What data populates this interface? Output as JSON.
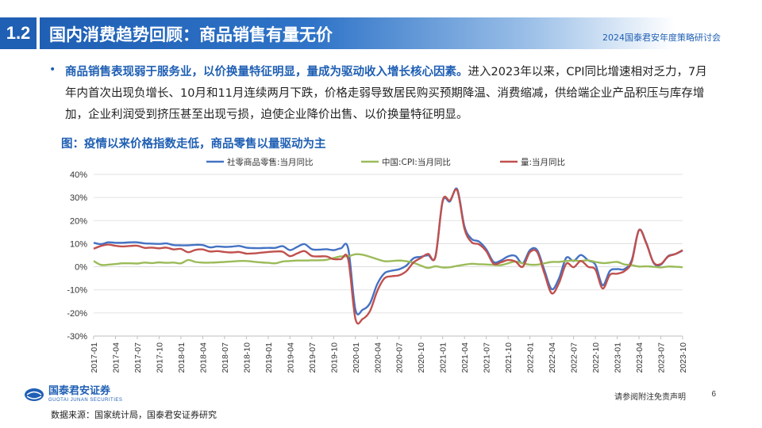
{
  "header": {
    "section_number": "1.2",
    "title": "国内消费趋势回顾：商品销售有量无价",
    "conference": "2024国泰君安年度策略研讨会"
  },
  "body": {
    "bullet": "•",
    "highlight": "商品销售表现弱于服务业，以价换量特征明显，量成为驱动收入增长核心因素。",
    "text": "进入2023年以来，CPI同比增速相对乏力，7月年内首次出现负增长、10月和11月连续两月下跌，价格走弱导致居民购买预期降温、消费缩减，供给端企业产品积压与库存增加，企业利润受到挤压甚至出现亏损，迫使企业降价出售、以价换量特征明显。"
  },
  "figure_title": "图：疫情以来价格指数走低，商品零售以量驱动为主",
  "footer": {
    "logo_cn": "国泰君安证券",
    "logo_en": "GUOTAI JUNAN SECURITIES",
    "disclaimer": "请参阅附注免责声明",
    "page": "6",
    "source": "数据来源：国家统计局，国泰君安证券研究"
  },
  "colors": {
    "brand_blue": "#1f5fb4"
  },
  "chart_data": {
    "type": "line",
    "x_start": "2017-01",
    "x_end": "2023-10",
    "x_tick_labels": [
      "2017-01",
      "2017-04",
      "2017-07",
      "2017-10",
      "2018-01",
      "2018-04",
      "2018-07",
      "2018-10",
      "2019-01",
      "2019-04",
      "2019-07",
      "2019-10",
      "2020-01",
      "2020-04",
      "2020-07",
      "2020-10",
      "2021-01",
      "2021-04",
      "2021-07",
      "2021-10",
      "2022-01",
      "2022-04",
      "2022-07",
      "2022-10",
      "2023-01",
      "2023-04",
      "2023-07",
      "2023-10"
    ],
    "y_tick_labels": [
      "40%",
      "30%",
      "20%",
      "10%",
      "0%",
      "-10%",
      "-20%",
      "-30%"
    ],
    "ylim": [
      -30,
      40
    ],
    "grid": true,
    "legend_position": "top",
    "series": [
      {
        "name": "社零商品零售:当月同比",
        "color": "#4472c4",
        "values": [
          10.4,
          9.8,
          10.6,
          10.4,
          10.4,
          10.6,
          10.6,
          10.1,
          10.0,
          9.9,
          10.1,
          9.4,
          9.3,
          9.3,
          9.5,
          9.4,
          8.4,
          8.8,
          8.6,
          8.7,
          9.0,
          8.3,
          8.1,
          8.1,
          8.2,
          8.2,
          8.9,
          7.2,
          8.6,
          9.8,
          7.6,
          7.4,
          7.6,
          7.2,
          8.0,
          8.0,
          -18.6,
          -18.6,
          -15.8,
          -7.5,
          -2.8,
          -1.7,
          -1.1,
          0.5,
          3.7,
          4.3,
          5.0,
          4.4,
          28.3,
          28.3,
          33.6,
          17.4,
          12.0,
          10.9,
          7.5,
          2.1,
          2.7,
          4.5,
          4.7,
          1.5,
          7.2,
          7.2,
          -1.6,
          -9.7,
          -5.0,
          3.9,
          2.5,
          5.1,
          2.8,
          0.9,
          -8.0,
          -1.8,
          -1.0,
          -1.0,
          2.9,
          15.9,
          10.4,
          1.7,
          0.9,
          4.6,
          5.5,
          7.0
        ]
      },
      {
        "name": "中国:CPI:当月同比",
        "color": "#9bbb59",
        "values": [
          2.5,
          0.8,
          0.9,
          1.2,
          1.5,
          1.5,
          1.4,
          1.8,
          1.6,
          1.9,
          1.7,
          1.8,
          1.5,
          2.9,
          2.1,
          1.8,
          1.8,
          1.9,
          2.1,
          2.3,
          2.5,
          2.5,
          2.2,
          1.9,
          1.7,
          1.5,
          2.3,
          2.5,
          2.7,
          2.7,
          2.8,
          2.8,
          3.0,
          3.8,
          4.5,
          4.5,
          5.4,
          5.2,
          4.3,
          3.3,
          2.4,
          2.5,
          2.7,
          2.4,
          1.7,
          0.5,
          -0.5,
          0.2,
          -0.3,
          -0.2,
          0.4,
          0.9,
          1.3,
          1.1,
          1.0,
          0.8,
          0.7,
          1.5,
          2.3,
          1.5,
          0.9,
          0.9,
          1.5,
          2.1,
          2.1,
          2.5,
          2.7,
          2.5,
          2.8,
          2.1,
          1.6,
          1.8,
          2.1,
          1.0,
          0.7,
          0.1,
          0.2,
          0.0,
          -0.3,
          0.1,
          0.0,
          -0.2
        ]
      },
      {
        "name": "量:当月同比",
        "color": "#c0504d",
        "values": [
          7.8,
          9.0,
          9.6,
          9.1,
          8.8,
          9.0,
          9.1,
          8.2,
          8.3,
          8.0,
          8.3,
          7.5,
          7.7,
          6.3,
          7.3,
          7.5,
          6.6,
          6.8,
          6.4,
          6.2,
          6.4,
          5.7,
          5.8,
          6.1,
          6.4,
          6.6,
          6.5,
          4.6,
          5.8,
          6.8,
          4.7,
          4.5,
          4.5,
          3.3,
          3.3,
          3.4,
          -22.6,
          -22.6,
          -19.2,
          -10.5,
          -5.0,
          -4.1,
          -3.7,
          -1.9,
          1.9,
          3.8,
          5.6,
          4.2,
          28.7,
          28.7,
          33.1,
          16.4,
          10.6,
          9.7,
          6.7,
          1.3,
          1.9,
          2.9,
          2.3,
          0.0,
          6.3,
          6.3,
          -3.0,
          -11.5,
          -7.0,
          1.3,
          -0.2,
          2.5,
          0.0,
          -1.2,
          -9.4,
          -3.5,
          -3.0,
          -1.9,
          2.2,
          15.8,
          10.1,
          1.9,
          1.2,
          4.4,
          5.5,
          7.2
        ]
      }
    ]
  }
}
